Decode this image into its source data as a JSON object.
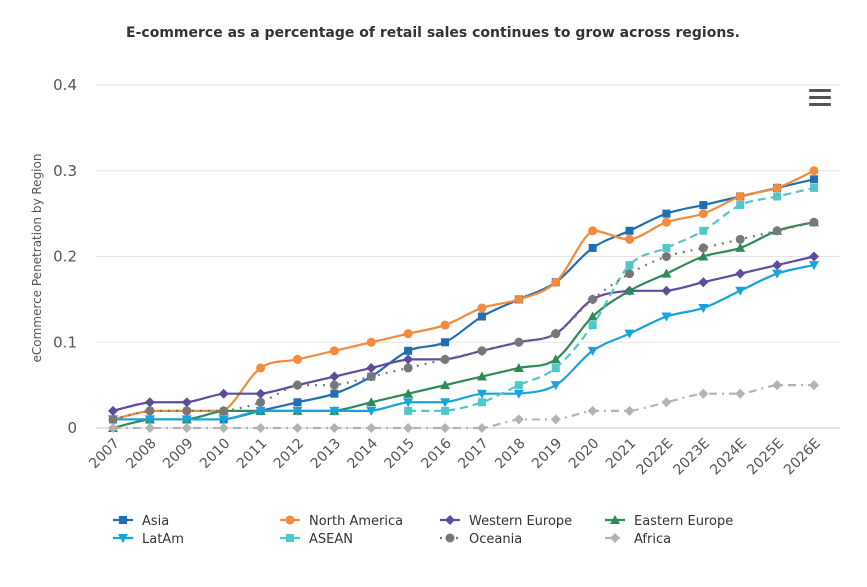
{
  "chart_data": {
    "type": "line",
    "title": "E-commerce as a percentage of retail sales continues to grow across regions.",
    "ylabel": "eCommerce Penetration by Region",
    "xlabel": "",
    "ylim": [
      0,
      0.4
    ],
    "yticks": [
      "0",
      "0.1",
      "0.2",
      "0.3",
      "0.4"
    ],
    "grid": true,
    "legend": "bottom",
    "categories": [
      "2007",
      "2008",
      "2009",
      "2010",
      "2011",
      "2012",
      "2013",
      "2014",
      "2015",
      "2016",
      "2017",
      "2018",
      "2019",
      "2020",
      "2021",
      "2022E",
      "2023E",
      "2024E",
      "2025E",
      "2026E"
    ],
    "series": [
      {
        "name": "Asia",
        "color": "#1f6fb2",
        "marker": "square",
        "dash": "solid",
        "values": [
          0.01,
          0.01,
          0.01,
          0.01,
          0.02,
          0.03,
          0.04,
          0.06,
          0.09,
          0.1,
          0.13,
          0.15,
          0.17,
          0.21,
          0.23,
          0.25,
          0.26,
          0.27,
          0.28,
          0.29
        ]
      },
      {
        "name": "North America",
        "color": "#f28b3b",
        "marker": "circle",
        "dash": "solid",
        "values": [
          0.01,
          0.02,
          0.02,
          0.02,
          0.07,
          0.08,
          0.09,
          0.1,
          0.11,
          0.12,
          0.14,
          0.15,
          0.17,
          0.23,
          0.22,
          0.24,
          0.25,
          0.27,
          0.28,
          0.3
        ]
      },
      {
        "name": "Western Europe",
        "color": "#5f4b9b",
        "marker": "diamond",
        "dash": "solid",
        "values": [
          0.02,
          0.03,
          0.03,
          0.04,
          0.04,
          0.05,
          0.06,
          0.07,
          0.08,
          0.08,
          0.09,
          0.1,
          0.11,
          0.15,
          0.16,
          0.16,
          0.17,
          0.18,
          0.19,
          0.2
        ]
      },
      {
        "name": "Eastern Europe",
        "color": "#2e8b57",
        "marker": "triangle",
        "dash": "solid",
        "values": [
          0.0,
          0.01,
          0.01,
          0.02,
          0.02,
          0.02,
          0.02,
          0.03,
          0.04,
          0.05,
          0.06,
          0.07,
          0.08,
          0.13,
          0.16,
          0.18,
          0.2,
          0.21,
          0.23,
          0.24
        ]
      },
      {
        "name": "LatAm",
        "color": "#18a3dc",
        "marker": "triangle-down",
        "dash": "solid",
        "values": [
          0.01,
          0.01,
          0.01,
          0.01,
          0.02,
          0.02,
          0.02,
          0.02,
          0.03,
          0.03,
          0.04,
          0.04,
          0.05,
          0.09,
          0.11,
          0.13,
          0.14,
          0.16,
          0.18,
          0.19
        ]
      },
      {
        "name": "ASEAN",
        "color": "#4ec8c8",
        "marker": "square",
        "dash": "dashed",
        "values": [
          null,
          null,
          null,
          null,
          null,
          null,
          null,
          null,
          0.02,
          0.02,
          0.03,
          0.05,
          0.07,
          0.12,
          0.19,
          0.21,
          0.23,
          0.26,
          0.27,
          0.28
        ]
      },
      {
        "name": "Oceania",
        "color": "#777777",
        "marker": "circle",
        "dash": "dotted",
        "values": [
          0.01,
          0.02,
          0.02,
          0.02,
          0.03,
          0.05,
          0.05,
          0.06,
          0.07,
          0.08,
          0.09,
          0.1,
          0.11,
          0.15,
          0.18,
          0.2,
          0.21,
          0.22,
          0.23,
          0.24
        ]
      },
      {
        "name": "Africa",
        "color": "#b3b3b3",
        "marker": "diamond",
        "dash": "dashdot",
        "values": [
          0,
          0,
          0,
          0,
          0,
          0,
          0,
          0,
          0,
          0,
          0,
          0.01,
          0.01,
          0.02,
          0.02,
          0.03,
          0.04,
          0.04,
          0.05,
          0.05
        ]
      }
    ]
  },
  "menu_icon": "hamburger-menu-icon"
}
